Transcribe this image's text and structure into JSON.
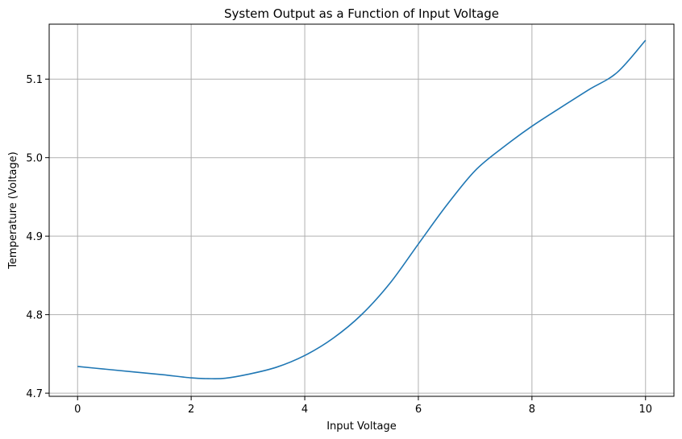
{
  "chart_data": {
    "type": "line",
    "title": "System Output as a Function of Input Voltage",
    "xlabel": "Input Voltage",
    "ylabel": "Temperature (Voltage)",
    "xlim": [
      -0.5,
      10.5
    ],
    "ylim": [
      4.696,
      5.17
    ],
    "xticks": [
      0,
      2,
      4,
      6,
      8,
      10
    ],
    "xtick_labels": [
      "0",
      "2",
      "4",
      "6",
      "8",
      "10"
    ],
    "yticks": [
      4.7,
      4.8,
      4.9,
      5.0,
      5.1
    ],
    "ytick_labels": [
      "4.7",
      "4.8",
      "4.9",
      "5.0",
      "5.1"
    ],
    "grid": true,
    "line_color": "#1f77b4",
    "series": [
      {
        "x": [
          0,
          0.5,
          1,
          1.5,
          2,
          2.3,
          2.6,
          3,
          3.5,
          4,
          4.5,
          5,
          5.5,
          6,
          6.5,
          7,
          7.5,
          8,
          8.5,
          9,
          9.5,
          10
        ],
        "y": [
          4.734,
          4.7305,
          4.727,
          4.7235,
          4.7195,
          4.7185,
          4.719,
          4.724,
          4.733,
          4.748,
          4.77,
          4.8,
          4.84,
          4.89,
          4.9395,
          4.9835,
          5.0135,
          5.04,
          5.0635,
          5.0865,
          5.1085,
          5.1495
        ]
      }
    ]
  }
}
